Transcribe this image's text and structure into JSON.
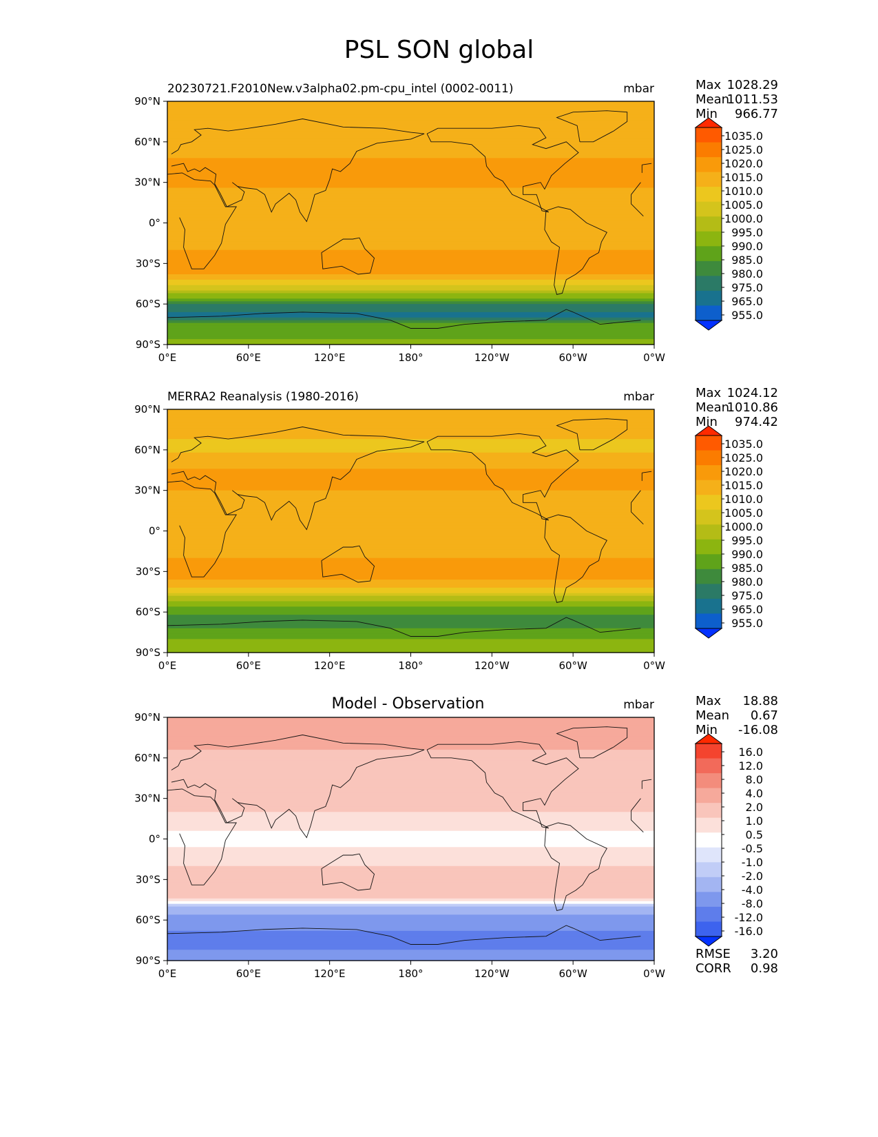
{
  "figure": {
    "title": "PSL SON global"
  },
  "chart_data": [
    {
      "type": "heatmap",
      "title": "20230721.F2010New.v3alpha02.pm-cpu_intel (0002-0011)",
      "units": "mbar",
      "stats": {
        "max_label": "Max",
        "max": "1028.29",
        "mean_label": "Mean",
        "mean": "1011.53",
        "min_label": "Min",
        "min": "966.77"
      },
      "colorbar_levels": [
        "1035.0",
        "1025.0",
        "1020.0",
        "1015.0",
        "1010.0",
        "1005.0",
        "1000.0",
        "995.0",
        "990.0",
        "985.0",
        "980.0",
        "975.0",
        "965.0",
        "955.0"
      ],
      "colorbar_colors": [
        "#ff2a00",
        "#ff5a00",
        "#fb7c00",
        "#f99a0a",
        "#f5b019",
        "#ecc71e",
        "#d4c41c",
        "#b4bc16",
        "#8cb510",
        "#5fa31a",
        "#3e8a3c",
        "#2b7a66",
        "#19728e",
        "#0d5fcc",
        "#0432ff"
      ],
      "xticks": [
        "0°E",
        "60°E",
        "120°E",
        "180°",
        "120°W",
        "60°W",
        "0°W"
      ],
      "yticks": [
        "90°N",
        "60°N",
        "30°N",
        "0°",
        "30°S",
        "60°S",
        "90°S"
      ],
      "x_range": [
        0,
        360
      ],
      "y_range": [
        -90,
        90
      ],
      "zonal_profile_mbar": [
        {
          "lat": 90,
          "value": 1013
        },
        {
          "lat": 75,
          "value": 1012
        },
        {
          "lat": 60,
          "value": 1010
        },
        {
          "lat": 45,
          "value": 1016
        },
        {
          "lat": 30,
          "value": 1016
        },
        {
          "lat": 15,
          "value": 1011
        },
        {
          "lat": 0,
          "value": 1010
        },
        {
          "lat": -15,
          "value": 1013
        },
        {
          "lat": -30,
          "value": 1019
        },
        {
          "lat": -40,
          "value": 1014
        },
        {
          "lat": -50,
          "value": 1000
        },
        {
          "lat": -55,
          "value": 990
        },
        {
          "lat": -62,
          "value": 978
        },
        {
          "lat": -68,
          "value": 972
        },
        {
          "lat": -75,
          "value": 985
        },
        {
          "lat": -90,
          "value": 992
        }
      ]
    },
    {
      "type": "heatmap",
      "title": "MERRA2 Reanalysis (1980-2016)",
      "units": "mbar",
      "stats": {
        "max_label": "Max",
        "max": "1024.12",
        "mean_label": "Mean",
        "mean": "1010.86",
        "min_label": "Min",
        "min": "974.42"
      },
      "colorbar_levels": [
        "1035.0",
        "1025.0",
        "1020.0",
        "1015.0",
        "1010.0",
        "1005.0",
        "1000.0",
        "995.0",
        "990.0",
        "985.0",
        "980.0",
        "975.0",
        "965.0",
        "955.0"
      ],
      "colorbar_colors": [
        "#ff2a00",
        "#ff5a00",
        "#fb7c00",
        "#f99a0a",
        "#f5b019",
        "#ecc71e",
        "#d4c41c",
        "#b4bc16",
        "#8cb510",
        "#5fa31a",
        "#3e8a3c",
        "#2b7a66",
        "#19728e",
        "#0d5fcc",
        "#0432ff"
      ],
      "xticks": [
        "0°E",
        "60°E",
        "120°E",
        "180°",
        "120°W",
        "60°W",
        "0°W"
      ],
      "yticks": [
        "90°N",
        "60°N",
        "30°N",
        "0°",
        "30°S",
        "60°S",
        "90°S"
      ],
      "x_range": [
        0,
        360
      ],
      "y_range": [
        -90,
        90
      ],
      "zonal_profile_mbar": [
        {
          "lat": 90,
          "value": 1012
        },
        {
          "lat": 75,
          "value": 1011
        },
        {
          "lat": 60,
          "value": 1009
        },
        {
          "lat": 45,
          "value": 1015
        },
        {
          "lat": 30,
          "value": 1015
        },
        {
          "lat": 15,
          "value": 1011
        },
        {
          "lat": 0,
          "value": 1010
        },
        {
          "lat": -15,
          "value": 1013
        },
        {
          "lat": -30,
          "value": 1018
        },
        {
          "lat": -40,
          "value": 1012
        },
        {
          "lat": -50,
          "value": 998
        },
        {
          "lat": -55,
          "value": 990
        },
        {
          "lat": -62,
          "value": 985
        },
        {
          "lat": -68,
          "value": 982
        },
        {
          "lat": -75,
          "value": 988
        },
        {
          "lat": -90,
          "value": 995
        }
      ]
    },
    {
      "type": "heatmap",
      "title": "Model - Observation",
      "units": "mbar",
      "stats": {
        "max_label": "Max",
        "max": "18.88",
        "mean_label": "Mean",
        "mean": "0.67",
        "min_label": "Min",
        "min": "-16.08"
      },
      "colorbar_levels": [
        "16.0",
        "12.0",
        "8.0",
        "4.0",
        "2.0",
        "1.0",
        "0.5",
        "-0.5",
        "-1.0",
        "-2.0",
        "-4.0",
        "-8.0",
        "-12.0",
        "-16.0"
      ],
      "colorbar_colors": [
        "#ff2a00",
        "#f4442e",
        "#f26a5a",
        "#f38c7c",
        "#f6a99b",
        "#f9c5bb",
        "#fce0da",
        "#ffffff",
        "#dfe5fb",
        "#c1cdf7",
        "#a3b5f2",
        "#7e98ed",
        "#5e7deb",
        "#3d63ee",
        "#0432ff"
      ],
      "xticks": [
        "0°E",
        "60°E",
        "120°E",
        "180°",
        "120°W",
        "60°W",
        "0°W"
      ],
      "yticks": [
        "90°N",
        "60°N",
        "30°N",
        "0°",
        "30°S",
        "60°S",
        "90°S"
      ],
      "x_range": [
        0,
        360
      ],
      "y_range": [
        -90,
        90
      ],
      "zonal_profile_mbar": [
        {
          "lat": 90,
          "value": 2.5
        },
        {
          "lat": 75,
          "value": 3
        },
        {
          "lat": 60,
          "value": 1.2
        },
        {
          "lat": 45,
          "value": 1.5
        },
        {
          "lat": 30,
          "value": 1.5
        },
        {
          "lat": 15,
          "value": 0.8
        },
        {
          "lat": 0,
          "value": 0.3
        },
        {
          "lat": -15,
          "value": 0.8
        },
        {
          "lat": -30,
          "value": 1.5
        },
        {
          "lat": -40,
          "value": 2
        },
        {
          "lat": -47,
          "value": 0
        },
        {
          "lat": -52,
          "value": -3
        },
        {
          "lat": -60,
          "value": -5
        },
        {
          "lat": -68,
          "value": -8
        },
        {
          "lat": -75,
          "value": -10
        },
        {
          "lat": -90,
          "value": -6
        }
      ],
      "extra_stats": {
        "rmse_label": "RMSE",
        "rmse": "3.20",
        "corr_label": "CORR",
        "corr": "0.98"
      }
    }
  ]
}
